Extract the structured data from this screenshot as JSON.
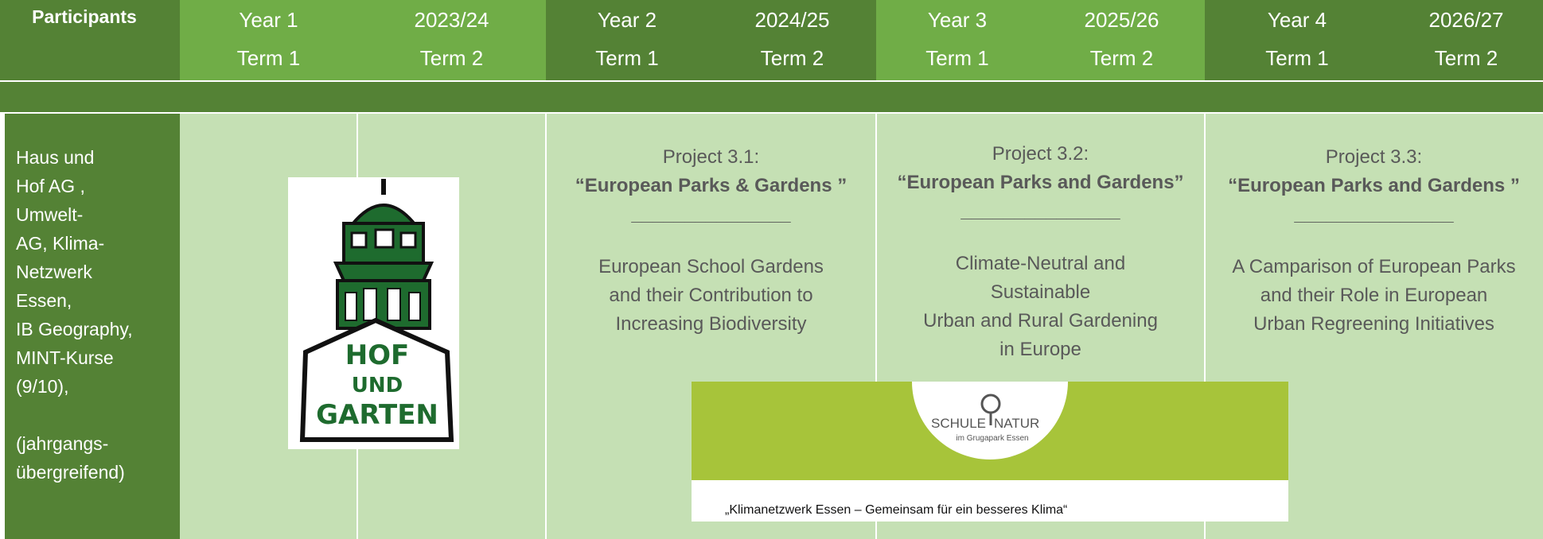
{
  "header": {
    "participants": "Participants",
    "years": [
      {
        "year": "Year 1",
        "period": "2023/24",
        "terms": [
          "Term 1",
          "Term 2"
        ]
      },
      {
        "year": "Year 2",
        "period": "2024/25",
        "terms": [
          "Term 1",
          "Term 2"
        ]
      },
      {
        "year": "Year 3",
        "period": "2025/26",
        "terms": [
          "Term 1",
          "Term 2"
        ]
      },
      {
        "year": "Year 4",
        "period": "2026/27",
        "terms": [
          "Term 1",
          "Term 2"
        ]
      }
    ]
  },
  "participants": [
    "Haus und",
    "Hof AG ,",
    "Umwelt-",
    "AG, Klima-",
    "Netzwerk",
    "Essen,",
    "IB Geography,",
    "MINT-Kurse",
    "(9/10),",
    "(jahrgangs-",
    "übergreifend)"
  ],
  "projects": [
    {
      "number": "Project 3.1:",
      "title": "“European Parks & Gardens ”",
      "separator": "_______________",
      "description": [
        "European School Gardens",
        "and their Contribution to",
        "Increasing Biodiversity"
      ]
    },
    {
      "number": "Project 3.2:",
      "title": "“European Parks and Gardens”",
      "separator": "_______________",
      "description": [
        "Climate-Neutral and",
        "Sustainable",
        "Urban and Rural Gardening",
        "in Europe"
      ]
    },
    {
      "number": "Project 3.3:",
      "title": "“European Parks and Gardens ”",
      "separator": "_______________",
      "description": [
        "A Camparison of European Parks",
        "and their Role in European",
        "Urban Regreening Initiatives"
      ]
    }
  ],
  "logos": {
    "hof_und_garten": [
      "HOF",
      "UND",
      "GARTEN"
    ],
    "schule_natur": {
      "name": [
        "SCHULE",
        "NATUR"
      ],
      "location": "im Grugapark Essen",
      "caption": "„Klimanetzwerk Essen – Gemeinsam für ein besseres Klima“"
    }
  }
}
